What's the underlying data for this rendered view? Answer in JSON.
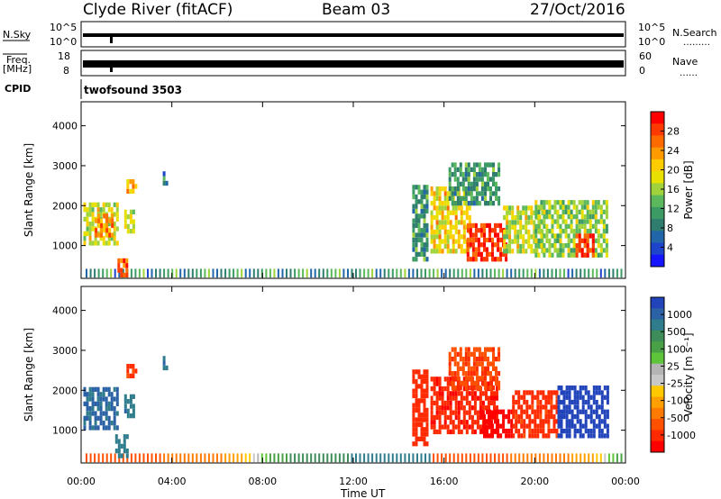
{
  "header": {
    "station": "Clyde River (fitACF)",
    "beam": "Beam 03",
    "date": "27/Oct/2016"
  },
  "strips": {
    "nsky_label": "N.Sky",
    "nsky_ticks": [
      "10^5",
      "10^0"
    ],
    "nsearch_label": "N.Search",
    "nsearch_dots": "………",
    "nsearch_ticks": [
      "10^5",
      "10^0"
    ],
    "freq_label_line1": "Freq.",
    "freq_label_line2": "[MHz]",
    "freq_ticks": [
      "18",
      "8"
    ],
    "nave_label": "Nave",
    "nave_dots": "……",
    "nave_ticks": [
      "60",
      "0"
    ],
    "cpid_label": "CPID",
    "cpid_value": "twofsound 3503"
  },
  "colorbars": {
    "power": {
      "label": "Power [dB]",
      "ticks": [
        "28",
        "24",
        "20",
        "16",
        "12",
        "8",
        "4"
      ],
      "colors": [
        "#ff0000",
        "#ff3a00",
        "#ff6a00",
        "#ff9a00",
        "#ffcc00",
        "#e8e000",
        "#a0d23c",
        "#5cb85c",
        "#3c9a64",
        "#2e7d6e",
        "#2266aa",
        "#1f44cc",
        "#1515ff"
      ]
    },
    "velocity": {
      "label": "Velocity [m s⁻¹]",
      "ticks": [
        "1000",
        "500",
        "100",
        "25",
        "-25",
        "-100",
        "-500",
        "-1000"
      ],
      "colors": [
        "#2244bb",
        "#2b62a6",
        "#2f7d8c",
        "#3e8c5a",
        "#4aa046",
        "#5ec43a",
        "#b4b4b4",
        "#c8c8c8",
        "#ffc800",
        "#ffa000",
        "#ff7a00",
        "#ff5000",
        "#ff2a00",
        "#ff0000"
      ]
    }
  },
  "chart_data": [
    {
      "type": "heatmap",
      "title": "",
      "xlabel": "Time UT",
      "ylabel": "Slant Range [km]",
      "x_ticks": [
        "00:00",
        "04:00",
        "08:00",
        "12:00",
        "16:00",
        "20:00",
        "00:00"
      ],
      "y_ticks": [
        1000,
        2000,
        3000,
        4000
      ],
      "xlim_hours": [
        0,
        24
      ],
      "ylim_km": [
        180,
        4600
      ],
      "colorbar": "Power [dB]",
      "patches": [
        {
          "t0": 0.1,
          "t1": 1.6,
          "r0": 1000,
          "r1": 2000,
          "value_db": 16
        },
        {
          "t0": 0.6,
          "t1": 1.4,
          "r0": 1200,
          "r1": 1700,
          "value_db": 22
        },
        {
          "t0": 1.9,
          "t1": 2.3,
          "r0": 1300,
          "r1": 1800,
          "value_db": 16
        },
        {
          "t0": 2.0,
          "t1": 2.4,
          "r0": 2300,
          "r1": 2550,
          "value_db": 20
        },
        {
          "t0": 3.6,
          "t1": 3.8,
          "r0": 2500,
          "r1": 2800,
          "value_db": 8
        },
        {
          "t0": 1.6,
          "t1": 2.0,
          "r0": 200,
          "r1": 600,
          "value_db": 24
        },
        {
          "t0": 14.6,
          "t1": 15.3,
          "r0": 600,
          "r1": 2500,
          "value_db": 10
        },
        {
          "t0": 15.4,
          "t1": 17.2,
          "r0": 800,
          "r1": 2400,
          "value_db": 18
        },
        {
          "t0": 16.2,
          "t1": 18.4,
          "r0": 2000,
          "r1": 3000,
          "value_db": 10
        },
        {
          "t0": 17.0,
          "t1": 18.8,
          "r0": 600,
          "r1": 1500,
          "value_db": 26
        },
        {
          "t0": 18.6,
          "t1": 20.4,
          "r0": 800,
          "r1": 2000,
          "value_db": 16
        },
        {
          "t0": 20.0,
          "t1": 23.2,
          "r0": 700,
          "r1": 2100,
          "value_db": 14
        },
        {
          "t0": 21.8,
          "t1": 22.6,
          "r0": 700,
          "r1": 1300,
          "value_db": 26
        }
      ]
    },
    {
      "type": "heatmap",
      "title": "",
      "xlabel": "Time UT",
      "ylabel": "Slant Range [km]",
      "x_ticks": [
        "00:00",
        "04:00",
        "08:00",
        "12:00",
        "16:00",
        "20:00",
        "00:00"
      ],
      "y_ticks": [
        1000,
        2000,
        3000,
        4000
      ],
      "xlim_hours": [
        0,
        24
      ],
      "ylim_km": [
        180,
        4600
      ],
      "colorbar": "Velocity [m s⁻¹]",
      "patches": [
        {
          "t0": 0.1,
          "t1": 1.6,
          "r0": 1000,
          "r1": 2000,
          "value_ms": 150
        },
        {
          "t0": 1.9,
          "t1": 2.3,
          "r0": 1300,
          "r1": 1800,
          "value_ms": 100
        },
        {
          "t0": 2.0,
          "t1": 2.4,
          "r0": 2300,
          "r1": 2550,
          "value_ms": -200
        },
        {
          "t0": 3.6,
          "t1": 3.8,
          "r0": 2500,
          "r1": 2800,
          "value_ms": 100
        },
        {
          "t0": 1.5,
          "t1": 2.0,
          "r0": 300,
          "r1": 800,
          "value_ms": 80
        },
        {
          "t0": 14.6,
          "t1": 15.3,
          "r0": 600,
          "r1": 2500,
          "value_ms": -300
        },
        {
          "t0": 15.4,
          "t1": 18.4,
          "r0": 900,
          "r1": 2300,
          "value_ms": -400
        },
        {
          "t0": 16.2,
          "t1": 18.4,
          "r0": 2000,
          "r1": 3000,
          "value_ms": -150
        },
        {
          "t0": 17.6,
          "t1": 19.0,
          "r0": 800,
          "r1": 1500,
          "value_ms": -900
        },
        {
          "t0": 19.0,
          "t1": 21.0,
          "r0": 800,
          "r1": 2000,
          "value_ms": -250
        },
        {
          "t0": 21.0,
          "t1": 23.2,
          "r0": 800,
          "r1": 2100,
          "value_ms": 600
        }
      ]
    }
  ]
}
